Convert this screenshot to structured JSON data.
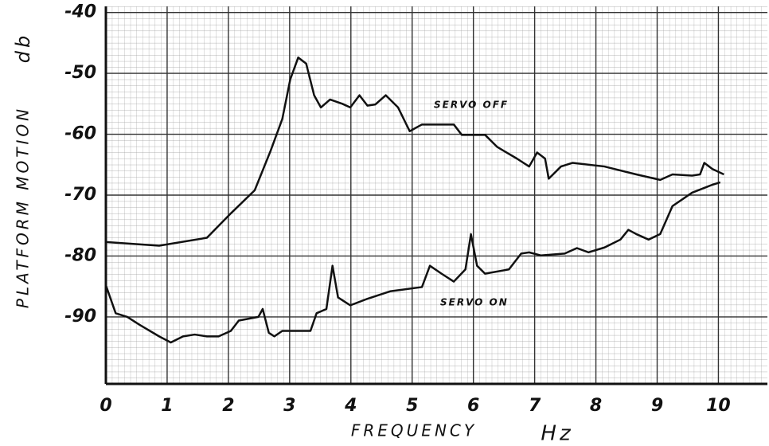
{
  "chart_data": {
    "type": "line",
    "x_label": "FREQUENCY",
    "x_unit": "Hz",
    "y_label": "PLATFORM MOTION",
    "y_unit": "db",
    "xlim": [
      0,
      10.8
    ],
    "ylim": [
      -101,
      -39
    ],
    "xticks": [
      0,
      1,
      2,
      3,
      4,
      5,
      6,
      7,
      8,
      9,
      10
    ],
    "yticks": [
      -40,
      -50,
      -60,
      -70,
      -80,
      -90
    ],
    "grid": true,
    "series": [
      {
        "name": "SERVO OFF",
        "color": "#111111",
        "x": [
          0,
          0.87,
          1.65,
          2.04,
          2.43,
          2.69,
          2.88,
          3.01,
          3.14,
          3.27,
          3.4,
          3.51,
          3.66,
          3.86,
          3.99,
          4.14,
          4.27,
          4.4,
          4.57,
          4.77,
          4.96,
          5.16,
          5.68,
          5.81,
          6.19,
          6.39,
          6.71,
          6.91,
          7.04,
          7.17,
          7.23,
          7.43,
          7.62,
          8.14,
          8.66,
          9.05,
          9.25,
          9.57,
          9.7,
          9.77,
          9.9,
          10.09
        ],
        "values": [
          -77.7,
          -78.3,
          -77,
          -73,
          -69.2,
          -62.7,
          -57.5,
          -51,
          -47.4,
          -48.4,
          -53.6,
          -55.6,
          -54.3,
          -55,
          -55.6,
          -53.6,
          -55.3,
          -55.1,
          -53.6,
          -55.6,
          -59.5,
          -58.4,
          -58.4,
          -60.1,
          -60.1,
          -62.1,
          -64,
          -65.3,
          -63,
          -64,
          -67.3,
          -65.3,
          -64.7,
          -65.3,
          -66.6,
          -67.5,
          -66.6,
          -66.8,
          -66.6,
          -64.7,
          -65.7,
          -66.6
        ]
      },
      {
        "name": "SERVO ON",
        "color": "#111111",
        "x": [
          0,
          0.16,
          0.35,
          0.55,
          0.87,
          1.06,
          1.26,
          1.45,
          1.65,
          1.84,
          2.04,
          2.17,
          2.49,
          2.56,
          2.66,
          2.75,
          2.88,
          3.34,
          3.44,
          3.6,
          3.7,
          3.79,
          3.99,
          4.25,
          4.64,
          5.16,
          5.29,
          5.48,
          5.68,
          5.87,
          5.96,
          6.06,
          6.19,
          6.58,
          6.78,
          6.91,
          7.1,
          7.49,
          7.69,
          7.88,
          8.14,
          8.4,
          8.53,
          8.66,
          8.86,
          9.05,
          9.25,
          9.57,
          9.9,
          10.03
        ],
        "values": [
          -84.8,
          -89.4,
          -90,
          -91.3,
          -93.2,
          -94.2,
          -93.2,
          -92.9,
          -93.2,
          -93.2,
          -92.3,
          -90.6,
          -90,
          -88.7,
          -92.6,
          -93.2,
          -92.3,
          -92.3,
          -89.4,
          -88.7,
          -81.6,
          -86.8,
          -88.1,
          -87.1,
          -85.8,
          -85.1,
          -81.6,
          -82.9,
          -84.2,
          -82.2,
          -76.4,
          -81.6,
          -82.9,
          -82.2,
          -79.6,
          -79.4,
          -79.9,
          -79.6,
          -78.7,
          -79.4,
          -78.6,
          -77.3,
          -75.7,
          -76.4,
          -77.3,
          -76.4,
          -71.8,
          -69.6,
          -68.3,
          -67.9
        ]
      }
    ]
  }
}
